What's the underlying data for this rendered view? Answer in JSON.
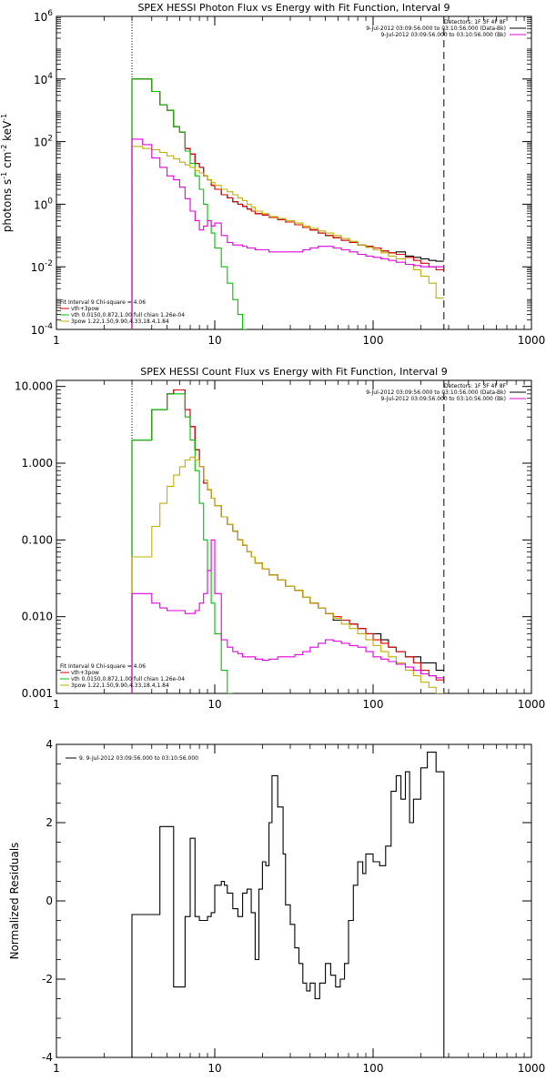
{
  "chart_data": [
    {
      "type": "line",
      "title": "SPEX HESSI Photon Flux vs Energy with Fit Function, Interval 9",
      "ylabel": "photons s$^{-1}$ cm$^{-2}$ keV$^{-1}$",
      "ylabel_parts": [
        "photons s",
        "-1",
        " cm",
        "-2",
        " keV",
        "-1"
      ],
      "xscale": "log",
      "yscale": "log",
      "xlim": [
        1,
        1000
      ],
      "ylim": [
        0.0001,
        1000000
      ],
      "xticks": [
        "1",
        "10",
        "100",
        "1000"
      ],
      "yticks": [
        {
          "base": "10",
          "exp": "-4",
          "v": 0.0001
        },
        {
          "base": "10",
          "exp": "-2",
          "v": 0.01
        },
        {
          "base": "10",
          "exp": "0",
          "v": 1
        },
        {
          "base": "10",
          "exp": "2",
          "v": 100
        },
        {
          "base": "10",
          "exp": "4",
          "v": 10000
        },
        {
          "base": "10",
          "exp": "6",
          "v": 1000000
        }
      ],
      "vlines": [
        {
          "x": 3,
          "style": "dotted"
        },
        {
          "x": 280,
          "style": "dashed"
        }
      ],
      "legend_tr": [
        {
          "text": "Detectors: 1F 3F 4F 8F",
          "color": ""
        },
        {
          "text": "9-Jul-2012 03:09:56.000 to 03:10:56.000 (Data-Bk)",
          "color": "#000000"
        },
        {
          "text": "9-Jul-2012 03:09:56.000 to 03:10:56.000 (Bk)",
          "color": "#e000e0"
        }
      ],
      "legend_bl": [
        {
          "text": "Fit Interval 9   Chi-square = 4.06",
          "color": ""
        },
        {
          "text": "vth+3pow",
          "color": "#e00000"
        },
        {
          "text": "vth 0.0150,0.872,1.00  full chian 1.26e-04",
          "color": "#00c000"
        },
        {
          "text": "3pow 1.22,1.50,9.90,4.33,18.4,1.84",
          "color": "#c0b000"
        }
      ],
      "edges": [
        3,
        3.5,
        4,
        4.5,
        5,
        5.5,
        6,
        6.5,
        7,
        7.5,
        8,
        8.5,
        9,
        9.5,
        10,
        11,
        12,
        13,
        14,
        15,
        16,
        17,
        18,
        20,
        22,
        25,
        28,
        32,
        36,
        40,
        45,
        50,
        56,
        63,
        71,
        80,
        90,
        100,
        112,
        125,
        140,
        160,
        180,
        200,
        225,
        250,
        280
      ],
      "series": [
        {
          "name": "Data-Bk",
          "color": "#000000",
          "values": [
            10000,
            10000,
            4000,
            1500,
            1000,
            300,
            200,
            60,
            40,
            20,
            15,
            8,
            6,
            4,
            3,
            2,
            1.6,
            1.2,
            1.0,
            0.85,
            0.7,
            0.6,
            0.5,
            0.45,
            0.38,
            0.32,
            0.27,
            0.22,
            0.18,
            0.15,
            0.12,
            0.1,
            0.085,
            0.07,
            0.06,
            0.05,
            0.045,
            0.04,
            0.032,
            0.028,
            0.03,
            0.022,
            0.02,
            0.018,
            0.016,
            0.015
          ]
        },
        {
          "name": "vth+3pow",
          "color": "#e00000",
          "values": [
            10000,
            10000,
            4000,
            1500,
            1000,
            300,
            200,
            60,
            40,
            20,
            15,
            8,
            6,
            4,
            3,
            2,
            1.6,
            1.2,
            1.0,
            0.85,
            0.7,
            0.6,
            0.5,
            0.45,
            0.38,
            0.32,
            0.27,
            0.22,
            0.18,
            0.15,
            0.12,
            0.1,
            0.085,
            0.07,
            0.06,
            0.05,
            0.045,
            0.04,
            0.032,
            0.028,
            0.025,
            0.02,
            0.016,
            0.013,
            0.01,
            0.008
          ]
        },
        {
          "name": "vth",
          "color": "#00c000",
          "values": [
            10000,
            10000,
            4000,
            1500,
            1000,
            300,
            200,
            50,
            20,
            8,
            3,
            1,
            0.3,
            0.12,
            0.04,
            0.01,
            0.003,
            0.0009,
            0.0003,
            0.0001
          ]
        },
        {
          "name": "3pow",
          "color": "#c0b000",
          "values": [
            70,
            60,
            55,
            45,
            35,
            28,
            22,
            18,
            15,
            12,
            10,
            8,
            6,
            5,
            4,
            3,
            2.5,
            2.0,
            1.6,
            1.3,
            1.0,
            0.8,
            0.6,
            0.5,
            0.4,
            0.35,
            0.3,
            0.25,
            0.2,
            0.17,
            0.14,
            0.12,
            0.1,
            0.08,
            0.065,
            0.05,
            0.042,
            0.035,
            0.028,
            0.022,
            0.018,
            0.012,
            0.008,
            0.005,
            0.003,
            0.001
          ]
        },
        {
          "name": "Bk",
          "color": "#e000e0",
          "values": [
            120,
            80,
            30,
            15,
            8,
            6,
            3.5,
            1.5,
            0.6,
            0.3,
            0.15,
            0.2,
            0.3,
            0.2,
            0.25,
            0.1,
            0.06,
            0.05,
            0.05,
            0.045,
            0.04,
            0.04,
            0.035,
            0.035,
            0.03,
            0.03,
            0.03,
            0.03,
            0.035,
            0.04,
            0.045,
            0.045,
            0.04,
            0.035,
            0.03,
            0.025,
            0.022,
            0.02,
            0.018,
            0.016,
            0.014,
            0.012,
            0.011,
            0.01,
            0.01,
            0.01
          ]
        }
      ]
    },
    {
      "type": "line",
      "title": "SPEX HESSI Count Flux vs Energy with Fit Function, Interval 9",
      "xscale": "log",
      "yscale": "log",
      "xlim": [
        1,
        1000
      ],
      "ylim": [
        0.001,
        12
      ],
      "xticks": [
        "1",
        "10",
        "100",
        "1000"
      ],
      "yticks": [
        {
          "label": "0.001",
          "v": 0.001
        },
        {
          "label": "0.010",
          "v": 0.01
        },
        {
          "label": "0.100",
          "v": 0.1
        },
        {
          "label": "1.000",
          "v": 1
        },
        {
          "label": "10.000",
          "v": 10
        }
      ],
      "vlines": [
        {
          "x": 3,
          "style": "dotted"
        },
        {
          "x": 280,
          "style": "dashed"
        }
      ],
      "legend_tr": [
        {
          "text": "Detectors: 1F 3F 4F 8F",
          "color": ""
        },
        {
          "text": "9-Jul-2012 03:09:56.000 to 03:10:56.000 (Data-Bk)",
          "color": "#000000"
        },
        {
          "text": "9-Jul-2012 03:09:56.000 to 03:10:56.000 (Bk)",
          "color": "#e000e0"
        }
      ],
      "legend_bl": [
        {
          "text": "Fit Interval 9   Chi-square = 4.06",
          "color": ""
        },
        {
          "text": "vth+3pow",
          "color": "#e00000"
        },
        {
          "text": "vth 0.0150,0.872,1.00  full chian 1.26e-04",
          "color": "#00c000"
        },
        {
          "text": "3pow 1.22,1.50,9.90,4.33,18.4,1.84",
          "color": "#c0b000"
        }
      ],
      "edges": [
        3,
        3.5,
        4,
        4.5,
        5,
        5.5,
        6,
        6.5,
        7,
        7.5,
        8,
        8.5,
        9,
        9.5,
        10,
        11,
        12,
        13,
        14,
        15,
        16,
        17,
        18,
        20,
        22,
        25,
        28,
        32,
        36,
        40,
        45,
        50,
        56,
        63,
        71,
        80,
        90,
        100,
        112,
        125,
        140,
        160,
        180,
        200,
        225,
        250,
        280
      ],
      "series": [
        {
          "name": "Data-Bk",
          "color": "#000000",
          "values": [
            2,
            2,
            5,
            5,
            8,
            9,
            9,
            5,
            3,
            1.5,
            0.9,
            0.55,
            0.45,
            0.35,
            0.28,
            0.2,
            0.16,
            0.13,
            0.1,
            0.085,
            0.07,
            0.06,
            0.05,
            0.042,
            0.035,
            0.03,
            0.025,
            0.022,
            0.018,
            0.015,
            0.013,
            0.011,
            0.009,
            0.009,
            0.008,
            0.007,
            0.006,
            0.006,
            0.005,
            0.004,
            0.0035,
            0.003,
            0.003,
            0.0025,
            0.0025,
            0.002
          ]
        },
        {
          "name": "vth+3pow",
          "color": "#e00000",
          "values": [
            2,
            2,
            5,
            5,
            8,
            9,
            9,
            5,
            3,
            1.5,
            0.9,
            0.55,
            0.45,
            0.35,
            0.28,
            0.2,
            0.16,
            0.13,
            0.1,
            0.085,
            0.07,
            0.06,
            0.05,
            0.042,
            0.035,
            0.03,
            0.025,
            0.022,
            0.018,
            0.015,
            0.013,
            0.011,
            0.01,
            0.009,
            0.008,
            0.007,
            0.006,
            0.005,
            0.0045,
            0.004,
            0.0035,
            0.003,
            0.0025,
            0.002,
            0.0017,
            0.0015
          ]
        },
        {
          "name": "vth",
          "color": "#00c000",
          "values": [
            2,
            2,
            5,
            5,
            8,
            8,
            8,
            4,
            2,
            0.8,
            0.3,
            0.1,
            0.04,
            0.015,
            0.006,
            0.002,
            0.001
          ]
        },
        {
          "name": "3pow",
          "color": "#c0b000",
          "values": [
            0.06,
            0.06,
            0.15,
            0.3,
            0.5,
            0.7,
            0.9,
            1.1,
            1.2,
            1.1,
            0.9,
            0.6,
            0.45,
            0.35,
            0.28,
            0.2,
            0.16,
            0.13,
            0.1,
            0.085,
            0.07,
            0.06,
            0.05,
            0.042,
            0.035,
            0.03,
            0.025,
            0.022,
            0.018,
            0.015,
            0.013,
            0.011,
            0.0095,
            0.008,
            0.007,
            0.006,
            0.005,
            0.0042,
            0.0035,
            0.003,
            0.0025,
            0.002,
            0.0017,
            0.0014,
            0.0012,
            0.001
          ]
        },
        {
          "name": "Bk",
          "color": "#e000e0",
          "values": [
            0.02,
            0.02,
            0.015,
            0.013,
            0.012,
            0.012,
            0.012,
            0.011,
            0.011,
            0.012,
            0.015,
            0.02,
            0.04,
            0.1,
            0.02,
            0.005,
            0.004,
            0.0035,
            0.0033,
            0.003,
            0.003,
            0.003,
            0.0028,
            0.0027,
            0.0028,
            0.003,
            0.003,
            0.0032,
            0.0035,
            0.004,
            0.0045,
            0.005,
            0.0048,
            0.0045,
            0.0042,
            0.004,
            0.0035,
            0.003,
            0.0028,
            0.0026,
            0.0024,
            0.0022,
            0.002,
            0.0018,
            0.0017,
            0.0016
          ]
        }
      ]
    },
    {
      "type": "line",
      "ylabel": "Normalized Residuals",
      "xscale": "log",
      "yscale": "linear",
      "xlim": [
        1,
        1000
      ],
      "ylim": [
        -4,
        4
      ],
      "xticks": [
        "1",
        "10",
        "100",
        "1000"
      ],
      "yticks": [
        {
          "label": "-4",
          "v": -4
        },
        {
          "label": "-2",
          "v": -2
        },
        {
          "label": "0",
          "v": 0
        },
        {
          "label": "2",
          "v": 2
        },
        {
          "label": "4",
          "v": 4
        }
      ],
      "legend_tl": [
        {
          "text": "9.  9-Jul-2012 03:09:56.000 to 03:10:56.000",
          "color": "#000000"
        }
      ],
      "edges": [
        3,
        4,
        4.5,
        5,
        5.5,
        6,
        6.5,
        7,
        7.5,
        8,
        8.5,
        9,
        9.5,
        10,
        10.5,
        11,
        11.5,
        12,
        12.5,
        13,
        14,
        15,
        16,
        17,
        18,
        19,
        20,
        21,
        22,
        23,
        25,
        27,
        28,
        30,
        32,
        34,
        36,
        38,
        40,
        43,
        46,
        50,
        54,
        58,
        62,
        66,
        70,
        75,
        80,
        86,
        90,
        100,
        110,
        120,
        130,
        140,
        150,
        160,
        170,
        180,
        200,
        220,
        250,
        280
      ],
      "series": [
        {
          "name": "Data-Bk",
          "color": "#000000",
          "values": [
            -0.35,
            -0.35,
            1.9,
            1.9,
            -2.2,
            -2.2,
            -0.4,
            1.6,
            -0.4,
            -0.5,
            -0.5,
            -0.4,
            -0.3,
            0.4,
            0.4,
            0.5,
            0.4,
            0.2,
            0.2,
            -0.2,
            -0.4,
            0.2,
            0.3,
            -0.3,
            -1.5,
            0.3,
            1.0,
            0.9,
            2.0,
            3.2,
            2.4,
            1.2,
            -0.1,
            -0.6,
            -1.2,
            -1.6,
            -2.1,
            -2.3,
            -2.1,
            -2.5,
            -2.1,
            -1.6,
            -1.9,
            -2.2,
            -2.0,
            -1.6,
            -0.5,
            0.4,
            1.0,
            0.7,
            1.2,
            1.0,
            0.9,
            1.4,
            2.8,
            3.2,
            2.6,
            3.3,
            2.0,
            2.6,
            3.4,
            3.8,
            3.3
          ]
        }
      ]
    }
  ]
}
